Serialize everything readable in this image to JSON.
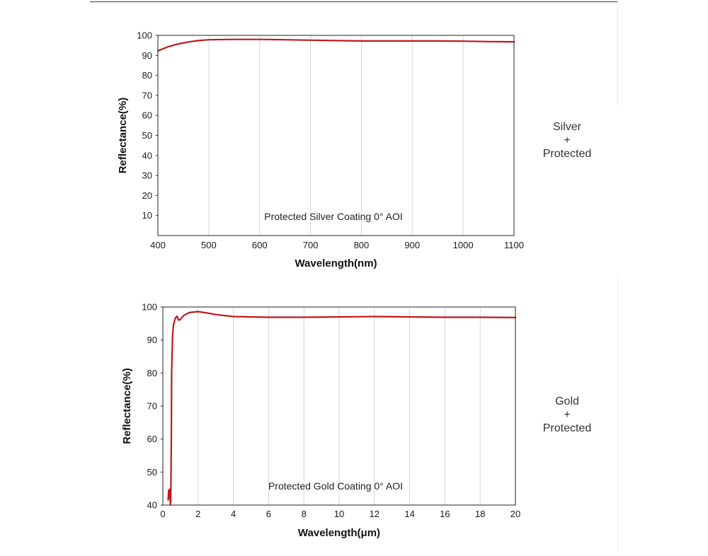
{
  "colors": {
    "curve": "#c0181d",
    "frame": "#222222",
    "grid": "#d6d6d6"
  },
  "side_labels": [
    {
      "line1": "Silver",
      "line2": "+",
      "line3": "Protected"
    },
    {
      "line1": "Gold",
      "line2": "+",
      "line3": "Protected"
    }
  ],
  "chart_data": [
    {
      "type": "line",
      "title": "",
      "annotation": "Protected Silver Coating  0°  AOI",
      "xlabel": "Wavelength(nm)",
      "ylabel": "Reflectance(%)",
      "xlim": [
        400,
        1100
      ],
      "ylim": [
        0,
        100
      ],
      "xticks": [
        400,
        500,
        600,
        700,
        800,
        900,
        1000,
        1100
      ],
      "yticks": [
        10,
        20,
        30,
        40,
        50,
        60,
        70,
        80,
        90,
        100
      ],
      "grid": "vertical",
      "series": [
        {
          "x": [
            400,
            420,
            440,
            460,
            480,
            500,
            550,
            600,
            650,
            700,
            750,
            800,
            850,
            900,
            950,
            1000,
            1050,
            1100
          ],
          "y": [
            92.3,
            94.3,
            95.7,
            96.7,
            97.4,
            97.8,
            98.0,
            98.0,
            97.8,
            97.6,
            97.4,
            97.2,
            97.2,
            97.2,
            97.2,
            97.1,
            96.9,
            96.8
          ]
        }
      ]
    },
    {
      "type": "line",
      "title": "",
      "annotation": "Protected Gold Coating  0°  AOI",
      "xlabel": "Wavelength(μm)",
      "ylabel": "Reflectance(%)",
      "xlim": [
        0,
        20
      ],
      "ylim": [
        40,
        100
      ],
      "xticks": [
        0,
        2,
        4,
        6,
        8,
        10,
        12,
        14,
        16,
        18,
        20
      ],
      "yticks": [
        40,
        50,
        60,
        70,
        80,
        90,
        100
      ],
      "grid": "vertical",
      "series": [
        {
          "x": [
            0.3,
            0.33,
            0.36,
            0.4,
            0.43,
            0.45,
            0.48,
            0.5,
            0.55,
            0.6,
            0.7,
            0.8,
            0.9,
            1.0,
            1.2,
            1.5,
            2.0,
            2.5,
            3.0,
            4.0,
            5.0,
            6.0,
            8.0,
            10.0,
            12.0,
            14.0,
            16.0,
            18.0,
            20.0
          ],
          "y": [
            41.5,
            44.5,
            42.0,
            44.8,
            40.2,
            41.0,
            60.0,
            80.0,
            91.0,
            94.5,
            96.5,
            97.2,
            96.0,
            96.3,
            97.5,
            98.3,
            98.6,
            98.2,
            97.7,
            97.1,
            97.0,
            96.9,
            96.9,
            97.0,
            97.1,
            97.0,
            96.9,
            96.9,
            96.8
          ]
        }
      ]
    }
  ]
}
